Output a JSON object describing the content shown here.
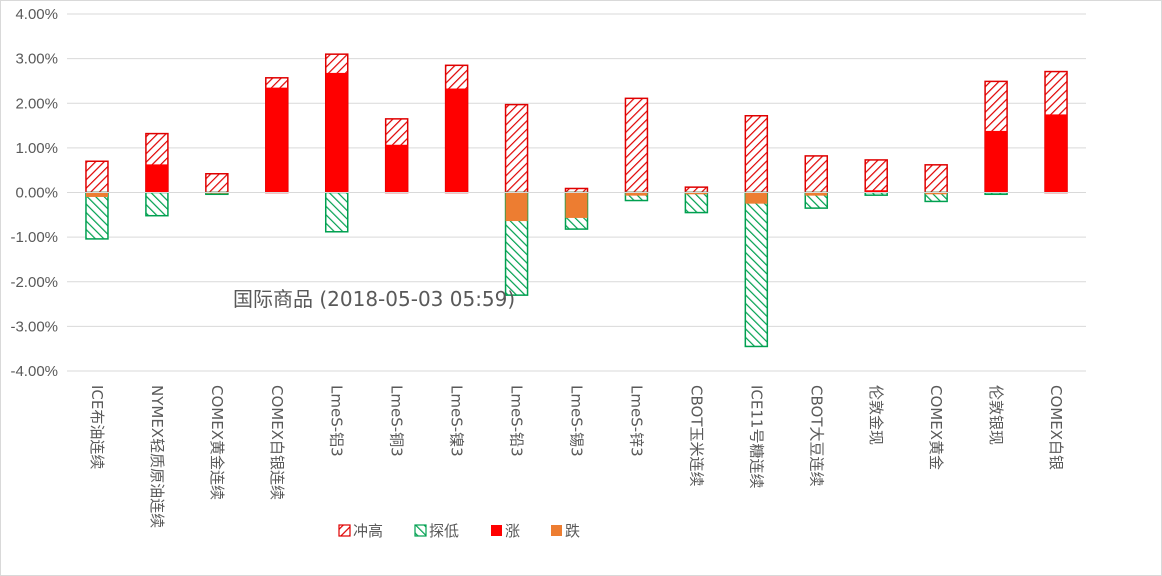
{
  "chart_data": {
    "type": "bar",
    "title": "国际商品 (2018-05-03 05:59)",
    "ylim": [
      -4.0,
      4.0
    ],
    "yticks": [
      -4.0,
      -3.0,
      -2.0,
      -1.0,
      0.0,
      1.0,
      2.0,
      3.0,
      4.0
    ],
    "ytick_labels": [
      "-4.00%",
      "-3.00%",
      "-2.00%",
      "-1.00%",
      "0.00%",
      "1.00%",
      "2.00%",
      "3.00%",
      "4.00%"
    ],
    "grid": true,
    "legend_position": "bottom-center",
    "categories": [
      "ICE布油连续",
      "NYMEX轻质原油连续",
      "COMEX黄金连续",
      "COMEX白银连续",
      "LmeS-铝3",
      "LmeS-铜3",
      "LmeS-镍3",
      "LmeS-铅3",
      "LmeS-锡3",
      "LmeS-锌3",
      "CBOT玉米连续",
      "ICE11号糖连续",
      "CBOT大豆连续",
      "伦敦金现",
      "COMEX黄金",
      "伦敦银现",
      "COMEX白银"
    ],
    "series": [
      {
        "name": "冲高",
        "color": "#e00000",
        "pattern": "red-hatch",
        "values": [
          0.7,
          1.32,
          0.42,
          2.57,
          3.1,
          1.65,
          2.85,
          1.97,
          0.09,
          2.11,
          0.12,
          1.72,
          0.82,
          0.73,
          0.62,
          2.49,
          2.71
        ]
      },
      {
        "name": "探低",
        "color": "#00a050",
        "pattern": "green-hatch",
        "values": [
          -1.04,
          -0.52,
          -0.04,
          0.0,
          -0.88,
          0.0,
          0.0,
          -2.3,
          -0.82,
          -0.18,
          -0.45,
          -3.45,
          -0.35,
          -0.06,
          -0.2,
          -0.04,
          0.0
        ]
      },
      {
        "name": "涨",
        "color": "#ff0000",
        "pattern": "solid",
        "values": [
          0.0,
          0.63,
          0.0,
          2.35,
          2.68,
          1.07,
          2.33,
          0.0,
          0.0,
          0.0,
          0.0,
          0.0,
          0.0,
          0.05,
          0.0,
          1.38,
          1.75
        ]
      },
      {
        "name": "跌",
        "color": "#ed7d31",
        "pattern": "solid",
        "values": [
          -0.1,
          0.0,
          -0.02,
          0.0,
          0.0,
          0.0,
          0.0,
          -0.64,
          -0.57,
          -0.07,
          -0.04,
          -0.25,
          -0.07,
          0.0,
          -0.04,
          0.0,
          0.0
        ]
      }
    ]
  }
}
